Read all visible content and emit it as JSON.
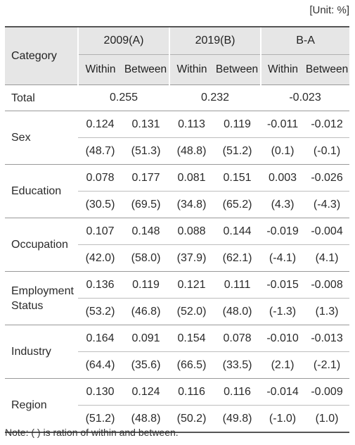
{
  "unit_label": "[Unit: %]",
  "header": {
    "category": "Category",
    "years": [
      "2009(A)",
      "2019(B)",
      "B-A"
    ],
    "sub": [
      "Within",
      "Between"
    ]
  },
  "total": {
    "label": "Total",
    "values": [
      "0.255",
      "0.232",
      "-0.023"
    ]
  },
  "groups": [
    {
      "label": "Sex",
      "row1": [
        "0.124",
        "0.131",
        "0.113",
        "0.119",
        "-0.011",
        "-0.012"
      ],
      "row2": [
        "(48.7)",
        "(51.3)",
        "(48.8)",
        "(51.2)",
        "(0.1)",
        "(-0.1)"
      ]
    },
    {
      "label": "Education",
      "row1": [
        "0.078",
        "0.177",
        "0.081",
        "0.151",
        "0.003",
        "-0.026"
      ],
      "row2": [
        "(30.5)",
        "(69.5)",
        "(34.8)",
        "(65.2)",
        "(4.3)",
        "(-4.3)"
      ]
    },
    {
      "label": "Occupation",
      "row1": [
        "0.107",
        "0.148",
        "0.088",
        "0.144",
        "-0.019",
        "-0.004"
      ],
      "row2": [
        "(42.0)",
        "(58.0)",
        "(37.9)",
        "(62.1)",
        "(-4.1)",
        "(4.1)"
      ]
    },
    {
      "label": "Employment Status",
      "row1": [
        "0.136",
        "0.119",
        "0.121",
        "0.111",
        "-0.015",
        "-0.008"
      ],
      "row2": [
        "(53.2)",
        "(46.8)",
        "(52.0)",
        "(48.0)",
        "(-1.3)",
        "(1.3)"
      ]
    },
    {
      "label": "Industry",
      "row1": [
        "0.164",
        "0.091",
        "0.154",
        "0.078",
        "-0.010",
        "-0.013"
      ],
      "row2": [
        "(64.4)",
        "(35.6)",
        "(66.5)",
        "(33.5)",
        "(2.1)",
        "(-2.1)"
      ]
    },
    {
      "label": "Region",
      "row1": [
        "0.130",
        "0.124",
        "0.116",
        "0.116",
        "-0.014",
        "-0.009"
      ],
      "row2": [
        "(51.2)",
        "(48.8)",
        "(50.2)",
        "(49.8)",
        "(-1.0)",
        "(1.0)"
      ]
    }
  ],
  "note": "Note: (    ) is ration of within and between."
}
